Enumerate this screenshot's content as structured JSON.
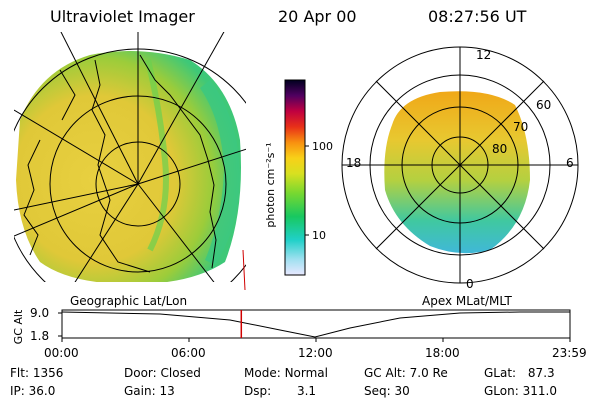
{
  "header": {
    "title": "Ultraviolet Imager",
    "date": "20 Apr 00",
    "time": "08:27:56 UT"
  },
  "colorbar": {
    "unit_label": "photon cm⁻²s⁻¹",
    "tick_100": "100",
    "tick_10": "10"
  },
  "left_map": {
    "caption": "Geographic Lat/Lon"
  },
  "right_map": {
    "caption": "Apex MLat/MLT",
    "mlt_12": "12",
    "mlt_18": "18",
    "mlt_6": "6",
    "mlt_0": "0",
    "lat_60": "60",
    "lat_70": "70",
    "lat_80": "80"
  },
  "timeline": {
    "ylabel": "GC Alt",
    "ytick_top": "9.0",
    "ytick_bottom": "1.8",
    "xticks": [
      "00:00",
      "06:00",
      "12:00",
      "18:00",
      "23:59"
    ],
    "current_time_hours": 8.47
  },
  "status": {
    "flt_label": "Flt:",
    "flt_value": "1356",
    "ip_label": "IP:",
    "ip_value": "36.0",
    "door_label": "Door:",
    "door_value": "Closed",
    "gain_label": "Gain:",
    "gain_value": "13",
    "mode_label": "Mode:",
    "mode_value": "Normal",
    "dsp_label": "Dsp:",
    "dsp_value": "3.1",
    "gcalt_label": "GC Alt:",
    "gcalt_value": "7.0 Re",
    "seq_label": "Seq:",
    "seq_value": "30",
    "glat_label": "GLat:",
    "glat_value": "87.3",
    "glon_label": "GLon:",
    "glon_value": "311.0"
  }
}
